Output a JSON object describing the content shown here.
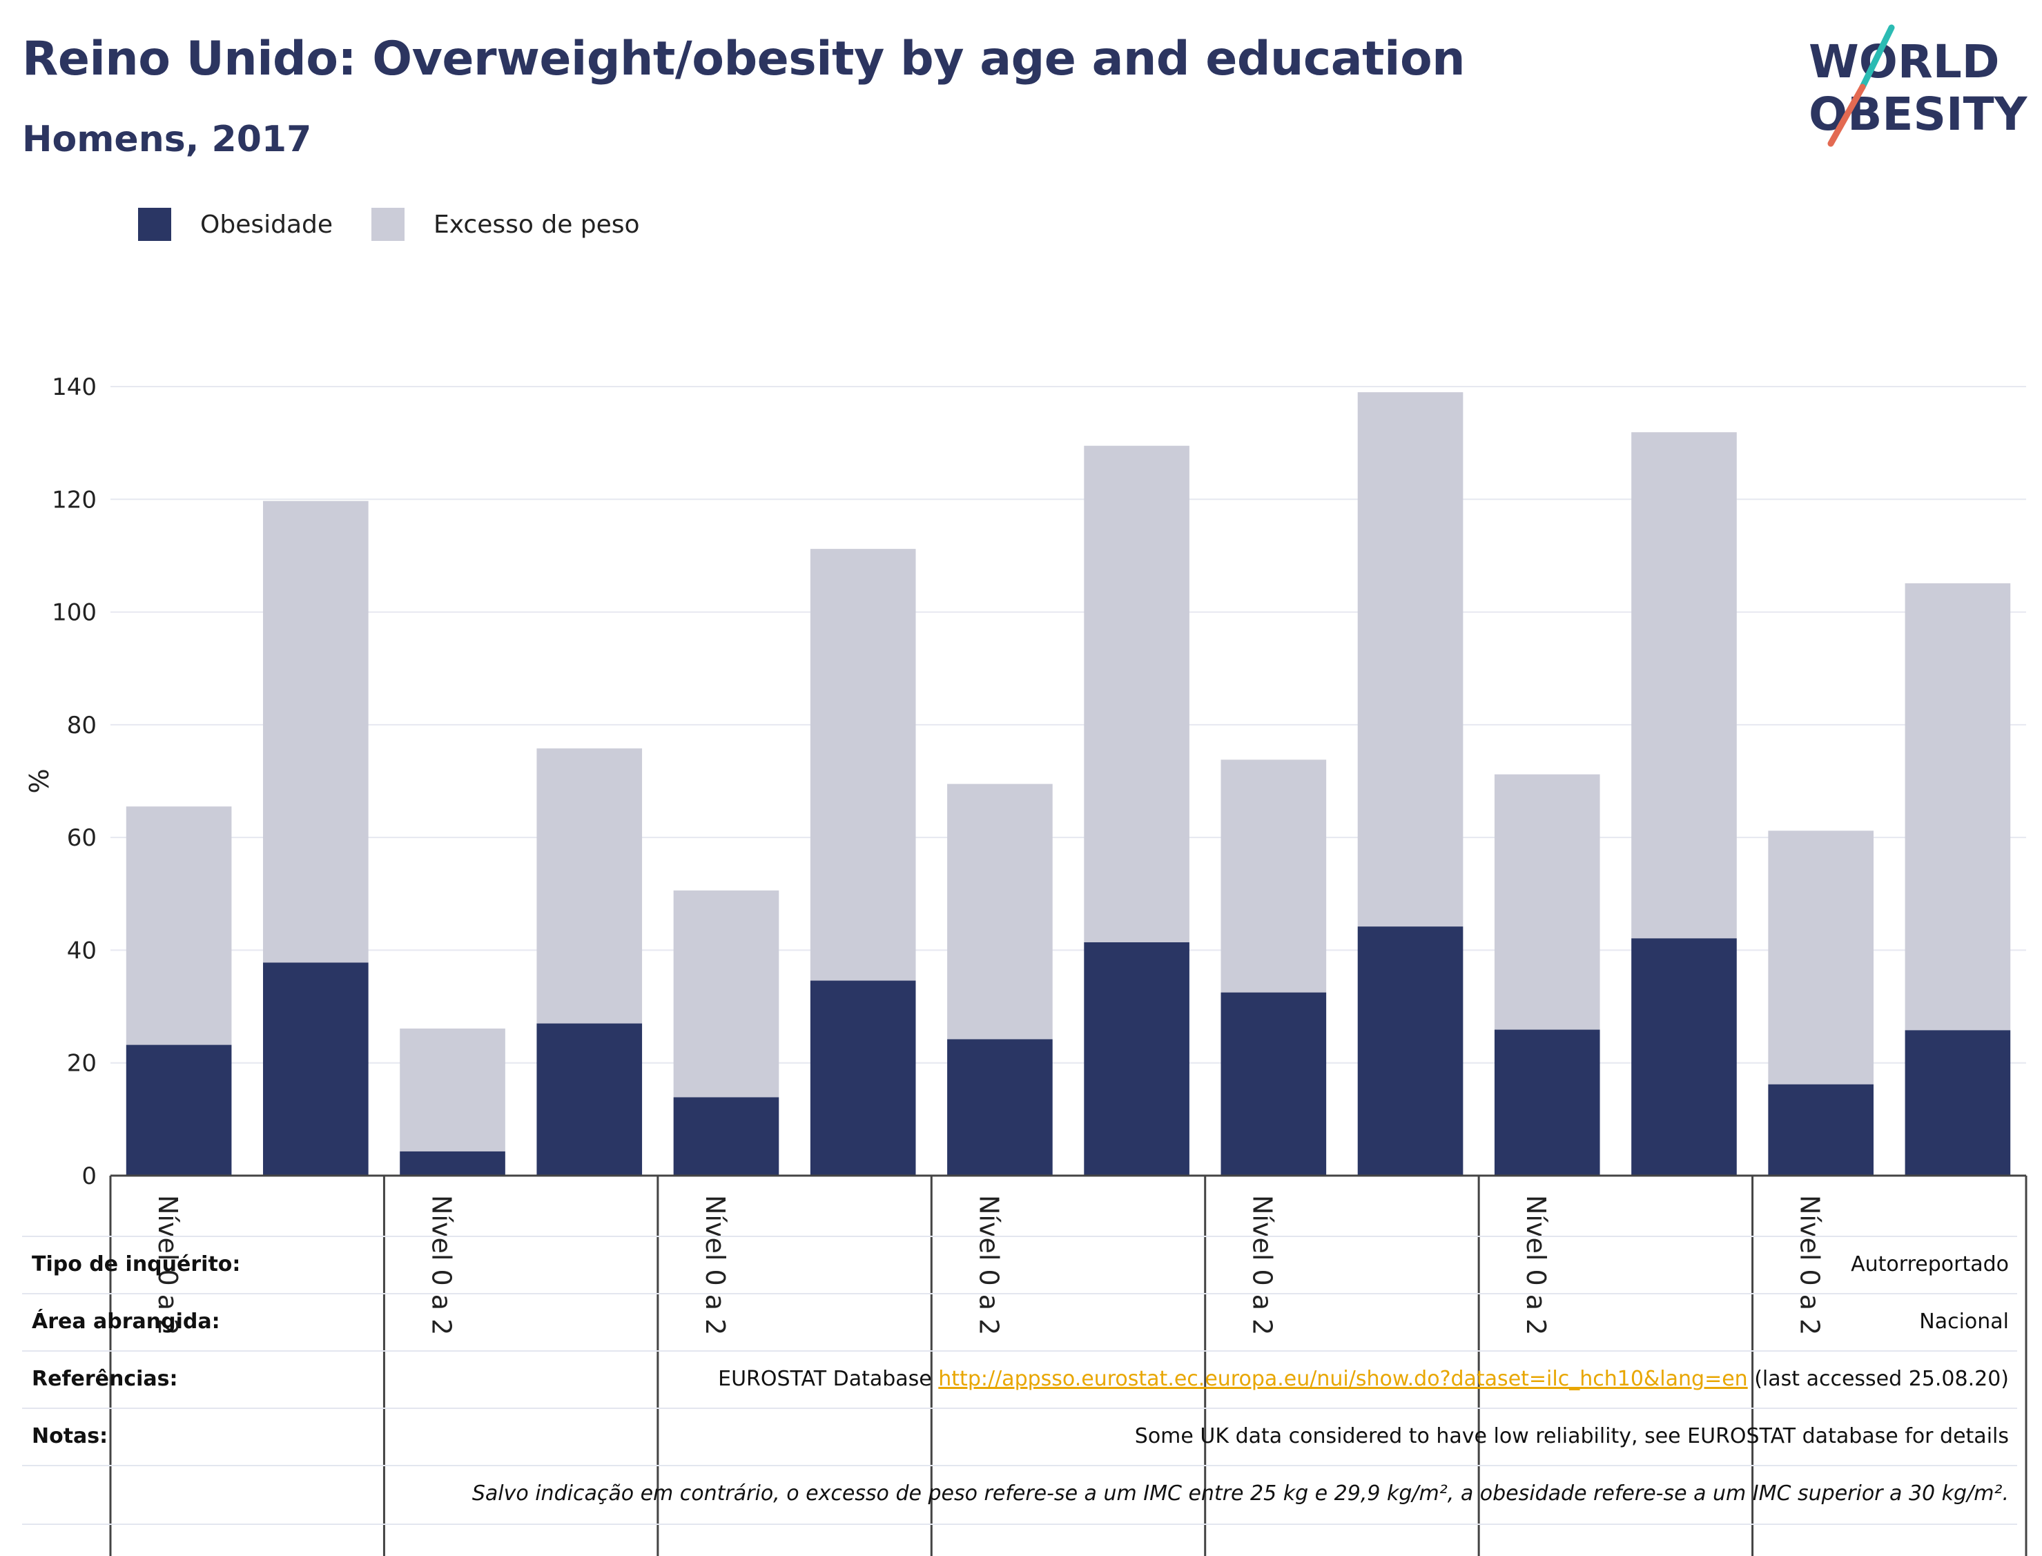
{
  "header": {
    "title": "Reino Unido: Overweight/obesity by age and education",
    "subtitle": "Homens, 2017"
  },
  "logo": {
    "line1": "WORLD",
    "line2": "OBESITY"
  },
  "colors": {
    "obesity": "#2a3664",
    "overweight": "#cbccd8",
    "title": "#2c3560",
    "link": "#e8a600",
    "logo_teal": "#2bbbb3",
    "logo_coral": "#e36a52"
  },
  "legend": [
    {
      "label": "Obesidade",
      "color": "#2a3664"
    },
    {
      "label": "Excesso de peso",
      "color": "#cbccd8"
    }
  ],
  "chart_data": {
    "type": "bar",
    "stacked": true,
    "ylabel": "%",
    "ylim": [
      0,
      140
    ],
    "yticks": [
      0,
      20,
      40,
      60,
      80,
      100,
      120,
      140
    ],
    "grid": true,
    "legend_position": "top-left",
    "group_labels": [
      "Nível 0 a 2",
      "Nível 0 a 2",
      "Nível 0 a 2",
      "Nível 0 a 2",
      "Nível 0 a 2",
      "Nível 0 a 2",
      "Nível 0 a 2"
    ],
    "series": [
      {
        "name": "Obesidade",
        "values": [
          23.2,
          37.8,
          4.3,
          27,
          13.9,
          34.6,
          24.2,
          41.4,
          32.5,
          44.2,
          25.9,
          42.1,
          16.2,
          25.8
        ]
      },
      {
        "name": "Excesso de peso",
        "values": [
          42.3,
          81.9,
          21.8,
          48.8,
          36.7,
          76.6,
          45.3,
          88.1,
          41.3,
          94.8,
          45.3,
          89.8,
          45,
          79.3
        ]
      }
    ]
  },
  "info_table": [
    {
      "label": "Tipo de inquérito:",
      "value": "Autorreportado"
    },
    {
      "label": "Área abrangida:",
      "value": "Nacional"
    },
    {
      "label": "Referências:",
      "value_prefix": "EUROSTAT Database ",
      "link": "http://appsso.eurostat.ec.europa.eu/nui/show.do?dataset=ilc_hch10&lang=en",
      "value_suffix": " (last accessed 25.08.20)"
    },
    {
      "label": "Notas:",
      "value": "Some UK data considered to have low reliability, see EUROSTAT database for details"
    },
    {
      "label": "",
      "value": "Salvo indicação em contrário, o excesso de peso refere-se a um IMC entre 25 kg e 29,9 kg/m², a obesidade refere-se a um IMC superior a 30 kg/m²."
    }
  ]
}
